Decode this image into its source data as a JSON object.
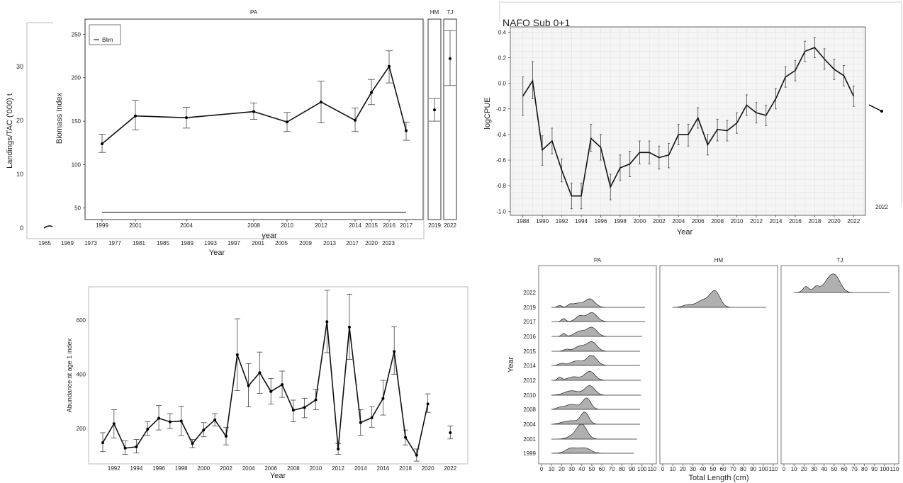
{
  "charts": {
    "biomass": {
      "chart_data": {
        "type": "line",
        "panels": [
          "PA",
          "HM",
          "TJ"
        ],
        "xlabel": "year",
        "ylabel": "Biomass Index",
        "ylim": [
          40,
          265
        ],
        "yticks": [
          50,
          100,
          150,
          200,
          250
        ],
        "categories": [
          "1999",
          "2001",
          "2004",
          "2008",
          "2010",
          "2012",
          "2014",
          "2015",
          "2016",
          "2017"
        ],
        "values": [
          124,
          156,
          154,
          161,
          149,
          172,
          151,
          183,
          213,
          139
        ],
        "err_low": [
          114,
          140,
          142,
          152,
          138,
          148,
          138,
          169,
          194,
          128
        ],
        "err_high": [
          135,
          174,
          166,
          171,
          160,
          196,
          165,
          198,
          231,
          149
        ],
        "hm": {
          "categories": [
            "2019"
          ],
          "values": [
            163
          ],
          "err_low": [
            150
          ],
          "err_high": [
            176
          ]
        },
        "tj": {
          "categories": [
            "2022"
          ],
          "values": [
            222
          ],
          "err_low": [
            191
          ],
          "err_high": [
            254
          ]
        },
        "legend": [
          "Blim"
        ],
        "blim": 45
      }
    },
    "landings": {
      "chart_data": {
        "type": "line",
        "ylabel": "Landings/TAC ('000) t",
        "xlabel": "Year",
        "yticks": [
          0,
          10,
          20,
          30
        ],
        "ylim": [
          -1,
          38
        ],
        "x_tick_labels": [
          "1965",
          "1969",
          "1973",
          "1977",
          "1981",
          "1985",
          "1989",
          "1993",
          "1997",
          "2001",
          "2005",
          "2009",
          "2013",
          "2017",
          "2020",
          "2023"
        ]
      }
    },
    "cpue": {
      "chart_data": {
        "type": "line",
        "title": "NAFO Sub 0+1",
        "xlabel": "Year",
        "ylabel": "logCPUE",
        "ylim": [
          -1.02,
          0.43
        ],
        "yticks": [
          -1.0,
          -0.8,
          -0.6,
          -0.4,
          -0.2,
          0.0,
          0.2,
          0.4
        ],
        "ytick_labels": [
          "-1.0",
          "-0.8",
          "-0.6",
          "-0.4",
          "-0.2",
          "0.0",
          "0.2",
          "0.4"
        ],
        "xlim": [
          1987,
          2023
        ],
        "xticks": [
          1988,
          1990,
          1992,
          1994,
          1996,
          1998,
          2000,
          2002,
          2004,
          2006,
          2008,
          2010,
          2012,
          2014,
          2016,
          2018,
          2020,
          2022
        ],
        "x": [
          1988,
          1989,
          1990,
          1991,
          1992,
          1993,
          1994,
          1995,
          1996,
          1997,
          1998,
          1999,
          2000,
          2001,
          2002,
          2003,
          2004,
          2005,
          2006,
          2007,
          2008,
          2009,
          2010,
          2011,
          2012,
          2013,
          2014,
          2015,
          2016,
          2017,
          2018,
          2019,
          2020,
          2021,
          2022
        ],
        "values": [
          -0.1,
          0.02,
          -0.52,
          -0.45,
          -0.68,
          -0.88,
          -0.88,
          -0.43,
          -0.5,
          -0.81,
          -0.66,
          -0.63,
          -0.54,
          -0.54,
          -0.58,
          -0.56,
          -0.4,
          -0.4,
          -0.27,
          -0.48,
          -0.36,
          -0.37,
          -0.31,
          -0.17,
          -0.23,
          -0.25,
          -0.12,
          0.05,
          0.1,
          0.25,
          0.28,
          0.19,
          0.11,
          0.06,
          -0.1
        ],
        "err_low": [
          -0.25,
          -0.12,
          -0.64,
          -0.55,
          -0.77,
          -0.98,
          -0.98,
          -0.53,
          -0.6,
          -0.91,
          -0.76,
          -0.73,
          -0.63,
          -0.63,
          -0.67,
          -0.66,
          -0.48,
          -0.49,
          -0.35,
          -0.56,
          -0.45,
          -0.45,
          -0.39,
          -0.25,
          -0.31,
          -0.33,
          -0.2,
          -0.03,
          0.02,
          0.17,
          0.2,
          0.11,
          0.03,
          -0.02,
          -0.18
        ],
        "err_high": [
          0.05,
          0.17,
          -0.41,
          -0.35,
          -0.59,
          -0.78,
          -0.78,
          -0.32,
          -0.4,
          -0.71,
          -0.56,
          -0.53,
          -0.45,
          -0.45,
          -0.49,
          -0.47,
          -0.32,
          -0.32,
          -0.19,
          -0.4,
          -0.28,
          -0.29,
          -0.23,
          -0.09,
          -0.15,
          -0.17,
          -0.04,
          0.13,
          0.18,
          0.33,
          0.36,
          0.27,
          0.19,
          0.14,
          -0.02
        ],
        "extra_xtick": "2022"
      }
    },
    "abundance": {
      "chart_data": {
        "type": "line",
        "xlabel": "Year",
        "ylabel": "Abundance at age 1 index",
        "ylim": [
          70,
          720
        ],
        "yticks": [
          200,
          400,
          600
        ],
        "xlim": [
          1989.8,
          2023.5
        ],
        "xticks": [
          1992,
          1994,
          1996,
          1998,
          2000,
          2002,
          2004,
          2006,
          2008,
          2010,
          2012,
          2014,
          2016,
          2018,
          2020,
          2022
        ],
        "x": [
          1991,
          1992,
          1993,
          1994,
          1995,
          1996,
          1997,
          1998,
          1999,
          2000,
          2001,
          2002,
          2003,
          2004,
          2005,
          2006,
          2007,
          2008,
          2009,
          2010,
          2011,
          2012,
          2013,
          2014,
          2015,
          2016,
          2017,
          2018,
          2019,
          2020
        ],
        "values": [
          148,
          218,
          128,
          133,
          198,
          238,
          225,
          228,
          145,
          195,
          232,
          172,
          472,
          358,
          406,
          337,
          362,
          268,
          278,
          306,
          594,
          125,
          574,
          222,
          240,
          311,
          484,
          168,
          102,
          291
        ],
        "err_low": [
          115,
          165,
          105,
          110,
          175,
          195,
          200,
          175,
          130,
          170,
          210,
          140,
          340,
          280,
          330,
          290,
          315,
          225,
          240,
          270,
          480,
          105,
          455,
          175,
          205,
          250,
          400,
          140,
          80,
          260
        ],
        "err_high": [
          185,
          270,
          155,
          160,
          225,
          285,
          255,
          282,
          160,
          222,
          255,
          205,
          605,
          440,
          482,
          385,
          412,
          305,
          312,
          345,
          710,
          145,
          695,
          270,
          280,
          378,
          575,
          195,
          125,
          328
        ],
        "extra_points": {
          "x": [
            2022
          ],
          "values": [
            185
          ],
          "err_low": [
            162
          ],
          "err_high": [
            210
          ]
        }
      }
    },
    "length": {
      "chart_data": {
        "type": "area",
        "panels": [
          "PA",
          "HM",
          "TJ"
        ],
        "xlabel": "Total Length (cm)",
        "ylabel": "Year",
        "xticks": [
          0,
          10,
          20,
          30,
          40,
          50,
          60,
          70,
          80,
          90,
          100,
          110
        ],
        "pa_years": [
          "1999",
          "2001",
          "2004",
          "2008",
          "2010",
          "2012",
          "2014",
          "2015",
          "2016",
          "2017",
          "2019"
        ],
        "hm_years": [
          "2019"
        ],
        "tj_years": [
          "2022"
        ],
        "y_tick_labels": [
          "1999",
          "2001",
          "2004",
          "2008",
          "2010",
          "2012",
          "2014",
          "2015",
          "2016",
          "2017",
          "2019",
          "2022"
        ]
      }
    }
  }
}
